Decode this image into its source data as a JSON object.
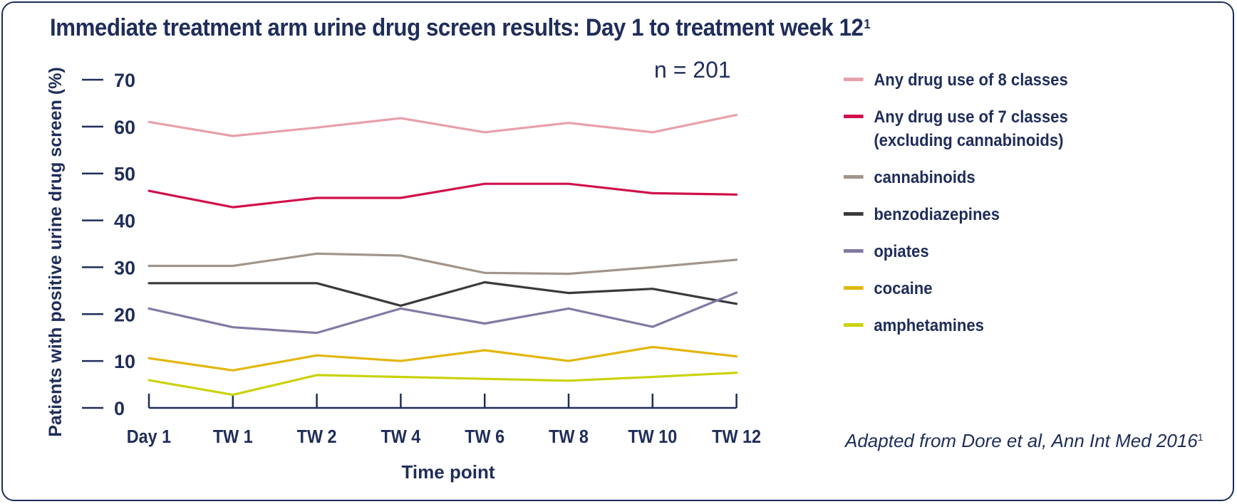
{
  "title": "Immediate treatment arm urine drug screen results: Day 1 to treatment week 12",
  "title_superscript": "1",
  "n_label": "n = 201",
  "source_text": "Adapted from Dore et al, Ann Int Med 2016",
  "source_superscript": "1",
  "colors": {
    "text": "#1f2d5a",
    "axis": "#1f2d5a"
  },
  "chart_data": {
    "type": "line",
    "title": "Immediate treatment arm urine drug screen results: Day 1 to treatment week 12",
    "xlabel": "Time point",
    "ylabel": "Patients with positive urine drug screen (%)",
    "categories": [
      "Day 1",
      "TW 1",
      "TW 2",
      "TW 4",
      "TW 6",
      "TW 8",
      "TW 10",
      "TW 12"
    ],
    "ylim": [
      0,
      70
    ],
    "yticks": [
      0,
      10,
      20,
      30,
      40,
      50,
      60,
      70
    ],
    "ytick_labels": [
      "0",
      "10",
      "20",
      "30",
      "40",
      "50",
      "60",
      "70"
    ],
    "grid": false,
    "legend_position": "right",
    "series": [
      {
        "name": "Any drug use of 8 classes",
        "color": "#e8a0aa",
        "values": [
          61,
          58,
          59.8,
          61.8,
          58.8,
          60.8,
          58.8,
          62.5
        ]
      },
      {
        "name": "Any drug use of 7 classes (excluding cannabinoids)",
        "name_line1": "Any drug use of 7 classes",
        "name_line2": "(excluding cannabinoids)",
        "color": "#d0114a",
        "values": [
          46.3,
          42.8,
          44.8,
          44.8,
          47.8,
          47.8,
          45.8,
          45.5
        ]
      },
      {
        "name": "cannabinoids",
        "color": "#a2958a",
        "values": [
          30.3,
          30.3,
          32.9,
          32.5,
          28.8,
          28.6,
          30,
          31.6
        ]
      },
      {
        "name": "benzodiazepines",
        "color": "#3a3a3c",
        "values": [
          26.6,
          26.6,
          26.6,
          21.8,
          26.8,
          24.5,
          25.4,
          22.2
        ]
      },
      {
        "name": "opiates",
        "color": "#8479a3",
        "values": [
          21.2,
          17.2,
          16,
          21.2,
          18,
          21.2,
          17.3,
          24.6
        ]
      },
      {
        "name": "cocaine",
        "color": "#e3b60c",
        "values": [
          10.6,
          8,
          11.2,
          10,
          12.3,
          10,
          13,
          11
        ]
      },
      {
        "name": "amphetamines",
        "color": "#c9d30a",
        "values": [
          5.9,
          2.8,
          7,
          6.6,
          6.2,
          5.8,
          6.6,
          7.5
        ]
      }
    ]
  }
}
